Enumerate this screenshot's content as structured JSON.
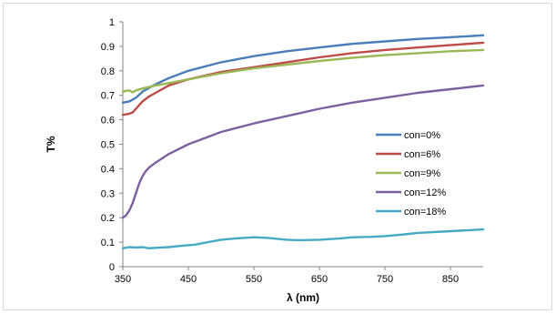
{
  "chart_data": {
    "type": "line",
    "title": "",
    "xlabel": "λ (nm)",
    "ylabel": "T%",
    "xlim": [
      350,
      900
    ],
    "ylim": [
      0,
      1
    ],
    "x_ticks": [
      350,
      450,
      550,
      650,
      750,
      850
    ],
    "y_ticks": [
      0,
      0.1,
      0.2,
      0.3,
      0.4,
      0.5,
      0.6,
      0.7,
      0.8,
      0.9,
      1
    ],
    "grid": false,
    "legend_position": "right",
    "series": [
      {
        "name": "con=0%",
        "color": "#4a7ebb",
        "points": [
          [
            350,
            0.67
          ],
          [
            360,
            0.675
          ],
          [
            370,
            0.69
          ],
          [
            380,
            0.715
          ],
          [
            400,
            0.745
          ],
          [
            420,
            0.77
          ],
          [
            450,
            0.8
          ],
          [
            500,
            0.835
          ],
          [
            550,
            0.86
          ],
          [
            600,
            0.88
          ],
          [
            650,
            0.895
          ],
          [
            700,
            0.91
          ],
          [
            750,
            0.92
          ],
          [
            800,
            0.93
          ],
          [
            850,
            0.937
          ],
          [
            900,
            0.945
          ]
        ]
      },
      {
        "name": "con=6%",
        "color": "#be4b48",
        "points": [
          [
            350,
            0.62
          ],
          [
            360,
            0.625
          ],
          [
            365,
            0.63
          ],
          [
            370,
            0.645
          ],
          [
            380,
            0.675
          ],
          [
            390,
            0.695
          ],
          [
            400,
            0.71
          ],
          [
            420,
            0.74
          ],
          [
            450,
            0.765
          ],
          [
            500,
            0.795
          ],
          [
            550,
            0.815
          ],
          [
            600,
            0.835
          ],
          [
            650,
            0.855
          ],
          [
            700,
            0.872
          ],
          [
            750,
            0.885
          ],
          [
            800,
            0.895
          ],
          [
            850,
            0.905
          ],
          [
            900,
            0.915
          ]
        ]
      },
      {
        "name": "con=9%",
        "color": "#98b954",
        "points": [
          [
            350,
            0.715
          ],
          [
            355,
            0.718
          ],
          [
            360,
            0.72
          ],
          [
            365,
            0.712
          ],
          [
            370,
            0.72
          ],
          [
            380,
            0.728
          ],
          [
            400,
            0.74
          ],
          [
            450,
            0.765
          ],
          [
            500,
            0.79
          ],
          [
            550,
            0.81
          ],
          [
            600,
            0.825
          ],
          [
            650,
            0.84
          ],
          [
            700,
            0.853
          ],
          [
            750,
            0.864
          ],
          [
            800,
            0.872
          ],
          [
            850,
            0.88
          ],
          [
            900,
            0.885
          ]
        ]
      },
      {
        "name": "con=12%",
        "color": "#7d60a0",
        "points": [
          [
            350,
            0.2
          ],
          [
            355,
            0.21
          ],
          [
            360,
            0.23
          ],
          [
            365,
            0.26
          ],
          [
            370,
            0.3
          ],
          [
            375,
            0.34
          ],
          [
            380,
            0.37
          ],
          [
            385,
            0.39
          ],
          [
            390,
            0.405
          ],
          [
            400,
            0.425
          ],
          [
            420,
            0.46
          ],
          [
            450,
            0.5
          ],
          [
            500,
            0.55
          ],
          [
            550,
            0.585
          ],
          [
            600,
            0.615
          ],
          [
            650,
            0.645
          ],
          [
            700,
            0.67
          ],
          [
            750,
            0.69
          ],
          [
            800,
            0.71
          ],
          [
            850,
            0.725
          ],
          [
            900,
            0.74
          ]
        ]
      },
      {
        "name": "con=18%",
        "color": "#46aac5",
        "points": [
          [
            350,
            0.075
          ],
          [
            360,
            0.08
          ],
          [
            370,
            0.078
          ],
          [
            380,
            0.08
          ],
          [
            390,
            0.075
          ],
          [
            400,
            0.077
          ],
          [
            420,
            0.08
          ],
          [
            440,
            0.085
          ],
          [
            460,
            0.09
          ],
          [
            480,
            0.1
          ],
          [
            500,
            0.11
          ],
          [
            520,
            0.115
          ],
          [
            550,
            0.12
          ],
          [
            570,
            0.118
          ],
          [
            600,
            0.11
          ],
          [
            620,
            0.108
          ],
          [
            650,
            0.11
          ],
          [
            680,
            0.115
          ],
          [
            700,
            0.12
          ],
          [
            730,
            0.122
          ],
          [
            750,
            0.125
          ],
          [
            780,
            0.132
          ],
          [
            800,
            0.138
          ],
          [
            850,
            0.145
          ],
          [
            900,
            0.152
          ]
        ]
      }
    ]
  }
}
